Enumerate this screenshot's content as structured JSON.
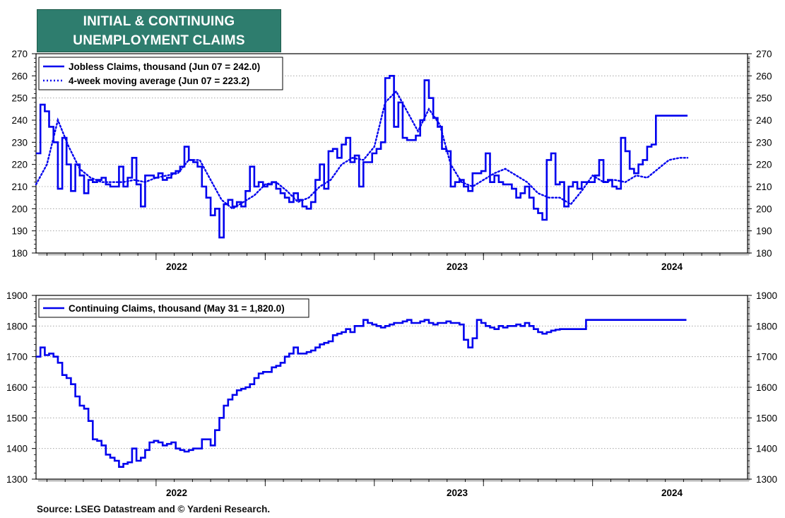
{
  "header": {
    "title_line1": "INITIAL & CONTINUING",
    "title_line2": "UNEMPLOYMENT CLAIMS",
    "title_bg": "#2e7d6e"
  },
  "footer": {
    "source": "Source: LSEG Datastream and © Yardeni Research."
  },
  "colors": {
    "series": "#0000ee",
    "grid": "#999999",
    "axis": "#000000"
  },
  "chart_data": [
    {
      "type": "line",
      "title": "",
      "xlabel": "",
      "ylabel": "",
      "x_ticks": [
        "2022",
        "2023",
        "2024"
      ],
      "x_range": [
        "2021-06",
        "2024-06"
      ],
      "ylim": [
        180,
        270
      ],
      "y_ticks": [
        180,
        190,
        200,
        210,
        220,
        230,
        240,
        250,
        260,
        270
      ],
      "grid": true,
      "legend_position": "top-left",
      "series": [
        {
          "name": "Jobless Claims, thousand (Jun 07 = 242.0)",
          "style": "solid",
          "x": [
            2021.45,
            2021.47,
            2021.49,
            2021.51,
            2021.53,
            2021.55,
            2021.57,
            2021.59,
            2021.61,
            2021.63,
            2021.65,
            2021.67,
            2021.69,
            2021.71,
            2021.73,
            2021.75,
            2021.77,
            2021.79,
            2021.81,
            2021.83,
            2021.85,
            2021.87,
            2021.89,
            2021.91,
            2021.93,
            2021.95,
            2021.97,
            2021.99,
            2022.01,
            2022.03,
            2022.05,
            2022.07,
            2022.09,
            2022.11,
            2022.13,
            2022.15,
            2022.17,
            2022.19,
            2022.21,
            2022.23,
            2022.25,
            2022.27,
            2022.29,
            2022.31,
            2022.33,
            2022.35,
            2022.37,
            2022.39,
            2022.41,
            2022.43,
            2022.45,
            2022.47,
            2022.49,
            2022.51,
            2022.53,
            2022.55,
            2022.57,
            2022.59,
            2022.61,
            2022.63,
            2022.65,
            2022.67,
            2022.69,
            2022.71,
            2022.73,
            2022.75,
            2022.77,
            2022.79,
            2022.81,
            2022.83,
            2022.85,
            2022.87,
            2022.89,
            2022.91,
            2022.93,
            2022.95,
            2022.97,
            2022.99,
            2023.01,
            2023.03,
            2023.05,
            2023.07,
            2023.09,
            2023.11,
            2023.13,
            2023.15,
            2023.17,
            2023.19,
            2023.21,
            2023.23,
            2023.25,
            2023.27,
            2023.29,
            2023.31,
            2023.33,
            2023.35,
            2023.37,
            2023.39,
            2023.41,
            2023.43,
            2023.45,
            2023.47,
            2023.49,
            2023.51,
            2023.53,
            2023.55,
            2023.57,
            2023.59,
            2023.61,
            2023.63,
            2023.65,
            2023.67,
            2023.69,
            2023.71,
            2023.73,
            2023.75,
            2023.77,
            2023.79,
            2023.81,
            2023.83,
            2023.85,
            2023.87,
            2023.89,
            2023.91,
            2023.93,
            2023.95,
            2023.97,
            2023.99,
            2024.01,
            2024.03,
            2024.05,
            2024.07,
            2024.09,
            2024.11,
            2024.13,
            2024.15,
            2024.17,
            2024.19,
            2024.21,
            2024.23,
            2024.25,
            2024.27,
            2024.29,
            2024.31,
            2024.33,
            2024.35,
            2024.37,
            2024.39,
            2024.41,
            2024.43
          ],
          "values": [
            225,
            247,
            244,
            237,
            230,
            209,
            232,
            220,
            208,
            220,
            215,
            207,
            213,
            212,
            213,
            214,
            211,
            210,
            210,
            219,
            210,
            214,
            223,
            211,
            201,
            215,
            215,
            214,
            216,
            213,
            214,
            216,
            217,
            219,
            228,
            222,
            221,
            219,
            210,
            205,
            197,
            200,
            187,
            202,
            204,
            201,
            203,
            201,
            208,
            219,
            210,
            212,
            210,
            211,
            212,
            209,
            207,
            205,
            203,
            207,
            204,
            201,
            200,
            203,
            213,
            220,
            209,
            226,
            227,
            223,
            229,
            232,
            221,
            224,
            210,
            221,
            221,
            225,
            227,
            230,
            259,
            260,
            237,
            248,
            232,
            231,
            231,
            233,
            240,
            258,
            250,
            241,
            237,
            227,
            226,
            210,
            212,
            213,
            210,
            208,
            216,
            216,
            217,
            225,
            212,
            215,
            212,
            211,
            211,
            209,
            205,
            207,
            210,
            205,
            200,
            198,
            195,
            222,
            225,
            211,
            212,
            201,
            210,
            212,
            209,
            212,
            212,
            212,
            215,
            222,
            212,
            213,
            210,
            209,
            232,
            226,
            218,
            216,
            220,
            222,
            228,
            229,
            242,
            242,
            242,
            242,
            242,
            242,
            242,
            242
          ],
          "x_end": 2024.435
        },
        {
          "name": "4-week moving average (Jun 07 = 223.2)",
          "style": "dotted",
          "x": [
            2021.45,
            2021.5,
            2021.55,
            2021.6,
            2021.65,
            2021.7,
            2021.75,
            2021.8,
            2021.85,
            2021.9,
            2021.95,
            2022.0,
            2022.05,
            2022.1,
            2022.15,
            2022.2,
            2022.25,
            2022.3,
            2022.35,
            2022.4,
            2022.45,
            2022.5,
            2022.55,
            2022.6,
            2022.65,
            2022.7,
            2022.75,
            2022.8,
            2022.85,
            2022.9,
            2022.95,
            2023.0,
            2023.05,
            2023.1,
            2023.15,
            2023.2,
            2023.25,
            2023.3,
            2023.35,
            2023.4,
            2023.45,
            2023.5,
            2023.55,
            2023.6,
            2023.65,
            2023.7,
            2023.75,
            2023.8,
            2023.85,
            2023.9,
            2023.95,
            2024.0,
            2024.05,
            2024.1,
            2024.15,
            2024.2,
            2024.25,
            2024.3,
            2024.35,
            2024.4,
            2024.435
          ],
          "values": [
            211,
            220,
            240,
            228,
            218,
            214,
            212,
            212,
            212,
            213,
            212,
            214,
            215,
            216,
            222,
            222,
            213,
            204,
            200,
            203,
            206,
            211,
            212,
            208,
            203,
            205,
            210,
            213,
            220,
            223,
            222,
            228,
            248,
            253,
            244,
            235,
            245,
            238,
            220,
            212,
            210,
            213,
            216,
            218,
            215,
            212,
            207,
            205,
            205,
            202,
            208,
            215,
            212,
            213,
            212,
            215,
            214,
            218,
            222,
            223,
            223
          ]
        }
      ]
    },
    {
      "type": "line",
      "title": "",
      "xlabel": "",
      "ylabel": "",
      "x_ticks": [
        "2022",
        "2023",
        "2024"
      ],
      "x_range": [
        "2021-06",
        "2024-06"
      ],
      "ylim": [
        1300,
        1900
      ],
      "y_ticks": [
        1300,
        1400,
        1500,
        1600,
        1700,
        1800,
        1900
      ],
      "grid": true,
      "legend_position": "top-left",
      "series": [
        {
          "name": "Continuing Claims, thousand (May 31 = 1,820.0)",
          "style": "solid",
          "x": [
            2021.45,
            2021.47,
            2021.49,
            2021.51,
            2021.53,
            2021.55,
            2021.57,
            2021.59,
            2021.61,
            2021.63,
            2021.65,
            2021.67,
            2021.69,
            2021.71,
            2021.73,
            2021.75,
            2021.77,
            2021.79,
            2021.81,
            2021.83,
            2021.85,
            2021.87,
            2021.89,
            2021.91,
            2021.93,
            2021.95,
            2021.97,
            2021.99,
            2022.01,
            2022.03,
            2022.05,
            2022.07,
            2022.09,
            2022.11,
            2022.13,
            2022.15,
            2022.17,
            2022.19,
            2022.21,
            2022.23,
            2022.25,
            2022.27,
            2022.29,
            2022.31,
            2022.33,
            2022.35,
            2022.37,
            2022.39,
            2022.41,
            2022.43,
            2022.45,
            2022.47,
            2022.49,
            2022.51,
            2022.53,
            2022.55,
            2022.57,
            2022.59,
            2022.61,
            2022.63,
            2022.65,
            2022.67,
            2022.69,
            2022.71,
            2022.73,
            2022.75,
            2022.77,
            2022.79,
            2022.81,
            2022.83,
            2022.85,
            2022.87,
            2022.89,
            2022.91,
            2022.93,
            2022.95,
            2022.97,
            2022.99,
            2023.01,
            2023.03,
            2023.05,
            2023.07,
            2023.09,
            2023.11,
            2023.13,
            2023.15,
            2023.17,
            2023.19,
            2023.21,
            2023.23,
            2023.25,
            2023.27,
            2023.29,
            2023.31,
            2023.33,
            2023.35,
            2023.37,
            2023.39,
            2023.41,
            2023.43,
            2023.45,
            2023.47,
            2023.49,
            2023.51,
            2023.53,
            2023.55,
            2023.57,
            2023.59,
            2023.61,
            2023.63,
            2023.65,
            2023.67,
            2023.69,
            2023.71,
            2023.73,
            2023.75,
            2023.77,
            2023.79,
            2023.81,
            2023.83,
            2023.85,
            2023.87,
            2023.89,
            2023.91,
            2023.93,
            2023.95,
            2023.97,
            2023.99,
            2024.01,
            2024.03,
            2024.05,
            2024.07,
            2024.09,
            2024.11,
            2024.13,
            2024.15,
            2024.17,
            2024.19,
            2024.21,
            2024.23,
            2024.25,
            2024.27,
            2024.29,
            2024.31,
            2024.33,
            2024.35,
            2024.37,
            2024.39,
            2024.41,
            2024.43
          ],
          "values": [
            1700,
            1730,
            1705,
            1710,
            1700,
            1680,
            1640,
            1630,
            1610,
            1570,
            1540,
            1530,
            1490,
            1430,
            1425,
            1410,
            1380,
            1370,
            1360,
            1340,
            1350,
            1355,
            1400,
            1360,
            1370,
            1395,
            1420,
            1425,
            1420,
            1410,
            1415,
            1420,
            1400,
            1395,
            1390,
            1395,
            1400,
            1400,
            1430,
            1430,
            1410,
            1460,
            1500,
            1540,
            1560,
            1575,
            1590,
            1595,
            1600,
            1610,
            1630,
            1645,
            1650,
            1650,
            1665,
            1670,
            1680,
            1700,
            1710,
            1730,
            1710,
            1710,
            1715,
            1720,
            1730,
            1740,
            1745,
            1750,
            1770,
            1775,
            1780,
            1790,
            1780,
            1800,
            1800,
            1820,
            1810,
            1805,
            1800,
            1795,
            1800,
            1805,
            1810,
            1810,
            1815,
            1820,
            1810,
            1810,
            1815,
            1820,
            1810,
            1805,
            1810,
            1810,
            1815,
            1810,
            1810,
            1805,
            1755,
            1730,
            1760,
            1820,
            1810,
            1800,
            1795,
            1790,
            1800,
            1795,
            1800,
            1800,
            1805,
            1800,
            1810,
            1800,
            1790,
            1780,
            1775,
            1780,
            1785,
            1788,
            1790,
            1790,
            1790,
            1790,
            1790,
            1790,
            1820,
            1820,
            1820,
            1820,
            1820,
            1820,
            1820,
            1820,
            1820,
            1820,
            1820,
            1820,
            1820,
            1820,
            1820,
            1820,
            1820,
            1820,
            1820,
            1820,
            1820,
            1820,
            1820,
            1820
          ],
          "x_end": 2024.425
        }
      ]
    }
  ]
}
